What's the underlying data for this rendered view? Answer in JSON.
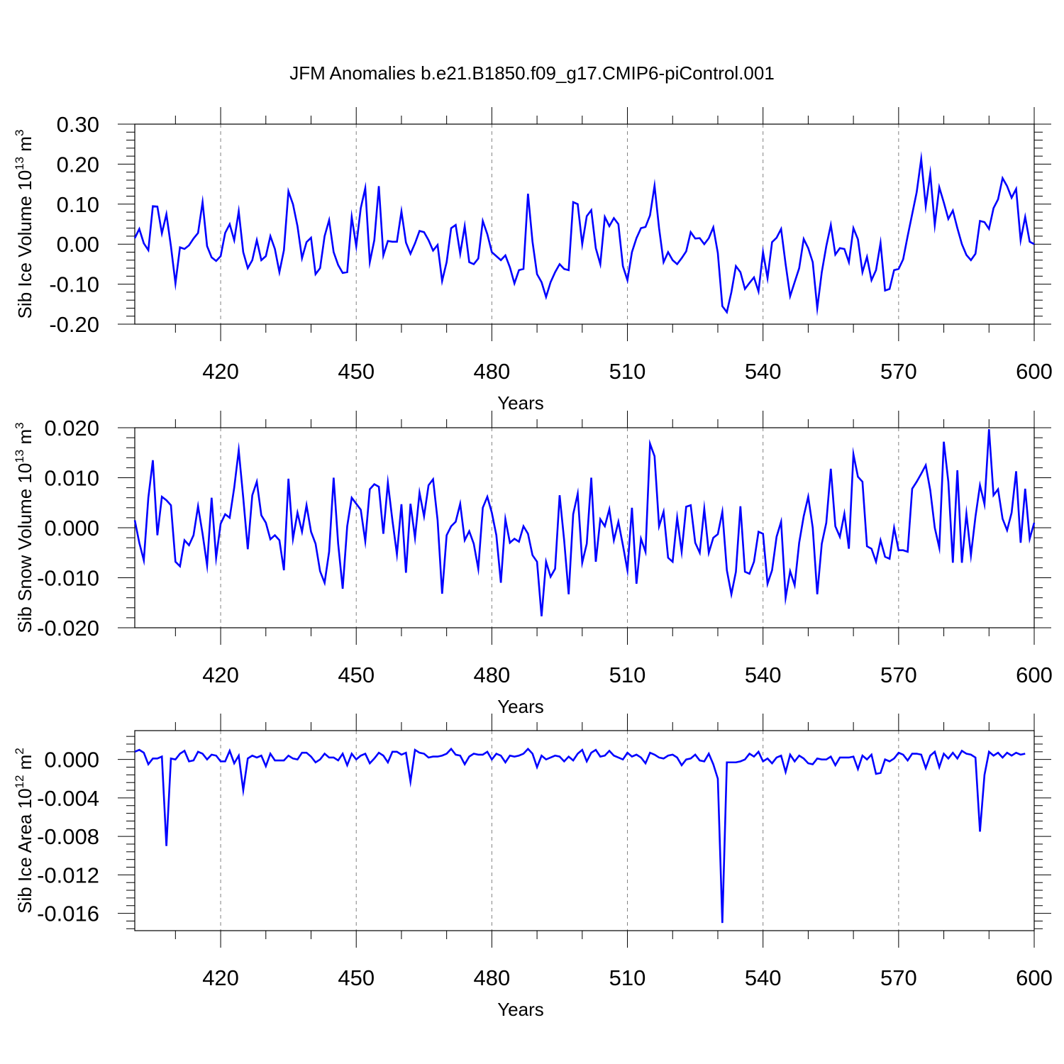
{
  "figure_title": "JFM Anomalies b.e21.B1850.f09_g17.CMIP6-piControl.001",
  "colors": {
    "series": "#0000ff",
    "axis": "#000000",
    "grid": "#808080"
  },
  "chart_data": [
    {
      "type": "line",
      "ylabel": "Sib Ice Volume 10",
      "ylabel_sup1": "13",
      "ylabel_unit": " m",
      "ylabel_sup2": "3",
      "xlabel": "Years",
      "xlim": [
        401,
        600
      ],
      "ylim": [
        -0.2,
        0.3
      ],
      "yticks": [
        -0.2,
        -0.1,
        0.0,
        0.1,
        0.2,
        0.3
      ],
      "ytick_labels": [
        "-0.20",
        "-0.10",
        "0.00",
        "0.10",
        "0.20",
        "0.30"
      ],
      "xticks": [
        420,
        450,
        480,
        510,
        540,
        570,
        600
      ],
      "xtick_labels": [
        "420",
        "450",
        "480",
        "510",
        "540",
        "570",
        "600"
      ],
      "grid_x": true,
      "x_start": 401,
      "values": [
        0.015,
        0.038,
        0.002,
        -0.015,
        0.095,
        0.094,
        0.027,
        0.075,
        -0.005,
        -0.098,
        -0.008,
        -0.012,
        -0.003,
        0.014,
        0.028,
        0.105,
        -0.005,
        -0.033,
        -0.042,
        -0.03,
        0.028,
        0.05,
        0.01,
        0.082,
        -0.02,
        -0.06,
        -0.04,
        0.01,
        -0.04,
        -0.03,
        0.02,
        -0.012,
        -0.07,
        -0.015,
        0.132,
        0.1,
        0.045,
        -0.035,
        0.005,
        0.016,
        -0.075,
        -0.06,
        0.02,
        0.06,
        -0.02,
        -0.052,
        -0.072,
        -0.07,
        0.068,
        -0.005,
        0.09,
        0.14,
        -0.045,
        0.01,
        0.145,
        -0.028,
        0.008,
        0.006,
        0.006,
        0.082,
        0.004,
        -0.024,
        0.002,
        0.033,
        0.03,
        0.01,
        -0.016,
        -0.002,
        -0.092,
        -0.045,
        0.04,
        0.048,
        -0.024,
        0.045,
        -0.045,
        -0.05,
        -0.036,
        0.058,
        0.025,
        -0.02,
        -0.03,
        -0.04,
        -0.028,
        -0.058,
        -0.098,
        -0.065,
        -0.062,
        0.126,
        0.006,
        -0.075,
        -0.095,
        -0.132,
        -0.095,
        -0.07,
        -0.05,
        -0.062,
        -0.065,
        0.105,
        0.1,
        0.0,
        0.07,
        0.085,
        -0.01,
        -0.05,
        0.068,
        0.045,
        0.065,
        0.05,
        -0.055,
        -0.09,
        -0.02,
        0.015,
        0.04,
        0.043,
        0.072,
        0.146,
        0.04,
        -0.045,
        -0.02,
        -0.04,
        -0.05,
        -0.035,
        -0.018,
        0.03,
        0.014,
        0.015,
        0.0,
        0.015,
        0.042,
        -0.022,
        -0.155,
        -0.17,
        -0.12,
        -0.055,
        -0.07,
        -0.112,
        -0.097,
        -0.083,
        -0.118,
        -0.02,
        -0.085,
        0.005,
        0.016,
        0.038,
        -0.05,
        -0.13,
        -0.095,
        -0.06,
        0.013,
        -0.01,
        -0.045,
        -0.16,
        -0.07,
        -0.005,
        0.048,
        -0.026,
        -0.01,
        -0.012,
        -0.045,
        0.04,
        0.012,
        -0.07,
        -0.032,
        -0.09,
        -0.065,
        0.003,
        -0.116,
        -0.112,
        -0.065,
        -0.062,
        -0.038,
        0.02,
        0.075,
        0.13,
        0.213,
        0.095,
        0.177,
        0.048,
        0.142,
        0.104,
        0.063,
        0.084,
        0.04,
        0.0,
        -0.027,
        -0.04,
        -0.024,
        0.058,
        0.055,
        0.038,
        0.09,
        0.112,
        0.165,
        0.145,
        0.116,
        0.138,
        0.01,
        0.068,
        0.006,
        0.0
      ]
    },
    {
      "type": "line",
      "ylabel": "Sib Snow Volume 10",
      "ylabel_sup1": "13",
      "ylabel_unit": " m",
      "ylabel_sup2": "3",
      "xlabel": "Years",
      "xlim": [
        401,
        600
      ],
      "ylim": [
        -0.02,
        0.02
      ],
      "yticks": [
        -0.02,
        -0.01,
        0.0,
        0.01,
        0.02
      ],
      "ytick_labels": [
        "-0.020",
        "-0.010",
        "0.000",
        "0.010",
        "0.020"
      ],
      "xticks": [
        420,
        450,
        480,
        510,
        540,
        570,
        600
      ],
      "xtick_labels": [
        "420",
        "450",
        "480",
        "510",
        "540",
        "570",
        "600"
      ],
      "grid_x": true,
      "x_start": 401,
      "values": [
        0.0015,
        -0.003,
        -0.0065,
        0.006,
        0.0135,
        -0.0015,
        0.0062,
        0.0055,
        0.0045,
        -0.0068,
        -0.0077,
        -0.0025,
        -0.0035,
        -0.0015,
        0.0043,
        -0.0012,
        -0.0075,
        0.006,
        -0.006,
        0.0008,
        0.0027,
        0.002,
        0.008,
        0.0155,
        0.006,
        -0.0043,
        0.0065,
        0.0092,
        0.0025,
        0.001,
        -0.0023,
        -0.0015,
        -0.0025,
        -0.0085,
        0.0098,
        -0.0022,
        0.003,
        -0.0008,
        0.0045,
        -0.0008,
        -0.0032,
        -0.0087,
        -0.011,
        -0.0048,
        0.01,
        -0.0032,
        -0.0122,
        0.0003,
        0.006,
        0.0048,
        0.0036,
        -0.0027,
        0.0077,
        0.0087,
        0.0082,
        -0.0012,
        0.009,
        0.0015,
        -0.0053,
        0.0047,
        -0.009,
        0.0048,
        -0.002,
        0.007,
        0.0023,
        0.0085,
        0.0097,
        0.0015,
        -0.0132,
        -0.0015,
        0.0003,
        0.0012,
        0.0048,
        -0.0025,
        -0.0007,
        -0.0032,
        -0.0082,
        0.004,
        0.0062,
        0.003,
        -0.0015,
        -0.011,
        0.0017,
        -0.003,
        -0.0022,
        -0.0028,
        0.0003,
        -0.0012,
        -0.0055,
        -0.0068,
        -0.0177,
        -0.0068,
        -0.0098,
        -0.0082,
        0.0065,
        -0.0025,
        -0.0133,
        0.0027,
        0.0068,
        -0.007,
        -0.0032,
        0.01,
        -0.0068,
        0.0017,
        0.0003,
        0.0037,
        -0.0025,
        0.0012,
        -0.0035,
        -0.0085,
        0.004,
        -0.0112,
        -0.0022,
        -0.0048,
        0.0168,
        0.0143,
        0.0003,
        0.0032,
        -0.006,
        -0.0068,
        0.002,
        -0.0048,
        0.0042,
        0.0045,
        -0.003,
        -0.005,
        0.0038,
        -0.005,
        -0.002,
        -0.0013,
        0.0032,
        -0.0085,
        -0.0133,
        -0.0088,
        0.0043,
        -0.0088,
        -0.0092,
        -0.0068,
        -0.0008,
        -0.0012,
        -0.0112,
        -0.0085,
        -0.0018,
        0.0012,
        -0.014,
        -0.0087,
        -0.0115,
        -0.003,
        0.0023,
        0.0062,
        0.0,
        -0.0133,
        -0.0032,
        0.001,
        0.0118,
        0.0003,
        -0.0018,
        0.0028,
        -0.0042,
        0.0147,
        0.0102,
        0.0092,
        -0.0037,
        -0.0042,
        -0.0068,
        -0.0025,
        -0.0058,
        -0.0062,
        0.0,
        -0.0045,
        -0.0045,
        -0.0048,
        0.0078,
        0.0092,
        0.0108,
        0.0125,
        0.0075,
        0.0,
        -0.004,
        0.0172,
        0.0092,
        -0.007,
        0.0115,
        -0.007,
        0.0028,
        -0.0055,
        0.0022,
        0.0085,
        0.0047,
        0.0197,
        0.0065,
        0.0077,
        0.0018,
        -0.0005,
        0.003,
        0.0113,
        -0.003,
        0.0078,
        -0.0022,
        0.001
      ]
    },
    {
      "type": "line",
      "ylabel": "Sib Ice Area 10",
      "ylabel_sup1": "12",
      "ylabel_unit": " m",
      "ylabel_sup2": "2",
      "xlabel": "Years",
      "xlim": [
        401,
        600
      ],
      "ylim": [
        -0.0178,
        0.003
      ],
      "yticks": [
        -0.016,
        -0.012,
        -0.008,
        -0.004,
        0.0
      ],
      "ytick_labels": [
        "-0.016",
        "-0.012",
        "-0.008",
        "-0.004",
        "0.000"
      ],
      "xticks": [
        420,
        450,
        480,
        510,
        540,
        570,
        600
      ],
      "xtick_labels": [
        "420",
        "450",
        "480",
        "510",
        "540",
        "570",
        "600"
      ],
      "grid_x": true,
      "x_start": 401,
      "values": [
        0.0008,
        0.001,
        0.0007,
        -0.0005,
        0.0001,
        0.0001,
        0.0003,
        -0.009,
        0.0001,
        0.0,
        0.0006,
        0.0009,
        -0.0002,
        -0.0001,
        0.0008,
        0.0006,
        0.0,
        0.0005,
        0.0004,
        -0.0002,
        -0.0002,
        0.0009,
        -0.0004,
        0.0004,
        -0.0032,
        0.0001,
        0.0004,
        0.0002,
        0.0004,
        -0.0007,
        0.0006,
        -0.0001,
        -0.0001,
        -0.0001,
        0.0004,
        0.0001,
        0.0,
        0.0007,
        0.0007,
        0.0003,
        -0.0003,
        0.0,
        0.0006,
        0.0002,
        0.0002,
        -0.0001,
        0.0006,
        -0.0006,
        0.0006,
        0.0,
        0.0004,
        0.0006,
        -0.0004,
        0.0001,
        0.0007,
        0.0004,
        -0.0003,
        0.0008,
        0.0008,
        0.0005,
        0.0007,
        -0.0023,
        0.001,
        0.0007,
        0.0006,
        0.0002,
        0.0003,
        0.0003,
        0.0004,
        0.0006,
        0.0011,
        0.0005,
        0.0004,
        -0.0005,
        0.0003,
        0.0006,
        0.0005,
        0.0005,
        0.0008,
        0.0,
        0.0006,
        0.0004,
        -0.0003,
        0.0004,
        0.0003,
        0.0004,
        0.0006,
        0.0011,
        0.0006,
        -0.0008,
        0.0004,
        0.0,
        0.0002,
        0.0004,
        0.0003,
        -0.0002,
        0.0003,
        -0.0001,
        0.0006,
        0.001,
        -0.0002,
        0.0007,
        0.001,
        0.0003,
        0.0004,
        0.0009,
        0.0004,
        0.0002,
        0.0,
        0.0007,
        0.0003,
        0.0005,
        0.0002,
        -0.0004,
        0.0007,
        0.0005,
        0.0002,
        0.0001,
        0.0004,
        0.0005,
        0.0002,
        -0.0006,
        0.0,
        0.0001,
        0.0005,
        -0.0001,
        -0.0002,
        0.0006,
        -0.0005,
        -0.002,
        -0.017,
        -0.0003,
        -0.0003,
        -0.0003,
        -0.0002,
        0.0,
        0.0006,
        0.0003,
        0.0008,
        -0.0002,
        0.0001,
        -0.0004,
        0.0002,
        0.0004,
        -0.0013,
        0.0005,
        -0.0002,
        0.0004,
        0.0001,
        -0.0004,
        -0.0005,
        0.0001,
        0.0,
        0.0,
        0.0003,
        -0.0006,
        0.0002,
        0.0002,
        0.0002,
        0.0003,
        -0.001,
        0.0004,
        0.0,
        0.0005,
        -0.0015,
        -0.0014,
        0.0,
        -0.0002,
        0.0001,
        0.0007,
        0.0005,
        -0.0001,
        0.0006,
        0.0006,
        0.0005,
        -0.0009,
        0.0004,
        0.0008,
        -0.0008,
        0.0006,
        0.0001,
        0.0007,
        0.0001,
        0.0009,
        0.0006,
        0.0005,
        0.0002,
        -0.0075,
        -0.0016,
        0.0008,
        0.0004,
        0.0007,
        0.0002,
        0.0007,
        0.0004,
        0.0007,
        0.0005,
        0.0006
      ]
    }
  ]
}
